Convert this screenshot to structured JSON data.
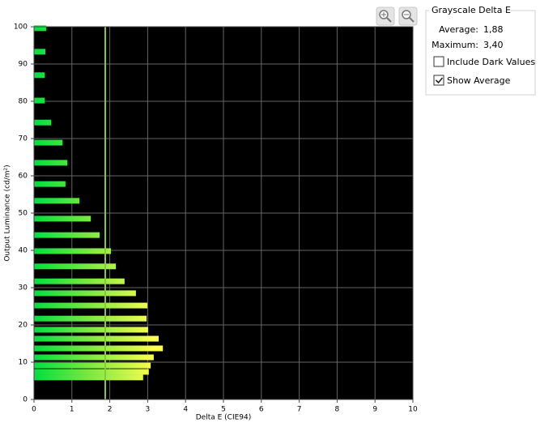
{
  "chart_data": {
    "type": "barh",
    "x_label": "Delta E (CIE94)",
    "y_label": "Output Luminance (cd/m²)",
    "y": [
      99.6,
      93.3,
      87.0,
      80.2,
      74.3,
      68.9,
      63.5,
      57.8,
      53.3,
      48.5,
      44.1,
      39.8,
      35.7,
      31.7,
      28.5,
      25.2,
      21.7,
      18.7,
      16.3,
      13.7,
      11.3,
      9.1,
      7.4,
      5.9
    ],
    "values": [
      0.32,
      0.3,
      0.28,
      0.28,
      0.45,
      0.75,
      0.88,
      0.83,
      1.2,
      1.5,
      1.73,
      2.03,
      2.16,
      2.39,
      2.69,
      2.99,
      2.97,
      3.01,
      3.29,
      3.4,
      3.16,
      3.08,
      3.03,
      2.88
    ],
    "xlim": [
      0,
      10
    ],
    "xticks": [
      0,
      1,
      2,
      3,
      4,
      5,
      6,
      7,
      8,
      9,
      10
    ],
    "ylim": [
      0,
      100
    ],
    "yticks": [
      0,
      10,
      20,
      30,
      40,
      50,
      60,
      70,
      80,
      90,
      100
    ],
    "grid": true,
    "average_color": "#8cc63f"
  },
  "panel": {
    "title": "Grayscale Delta E",
    "average_label": "Average:",
    "average": {
      "value": 1.88,
      "label": "1,88"
    },
    "maximum_label": "Maximum:",
    "maximum": {
      "value": 3.4,
      "label": "3,40"
    },
    "checkboxes": [
      {
        "label": "Include Dark Values",
        "checked": false
      },
      {
        "label": "Show Average",
        "checked": true
      }
    ]
  }
}
